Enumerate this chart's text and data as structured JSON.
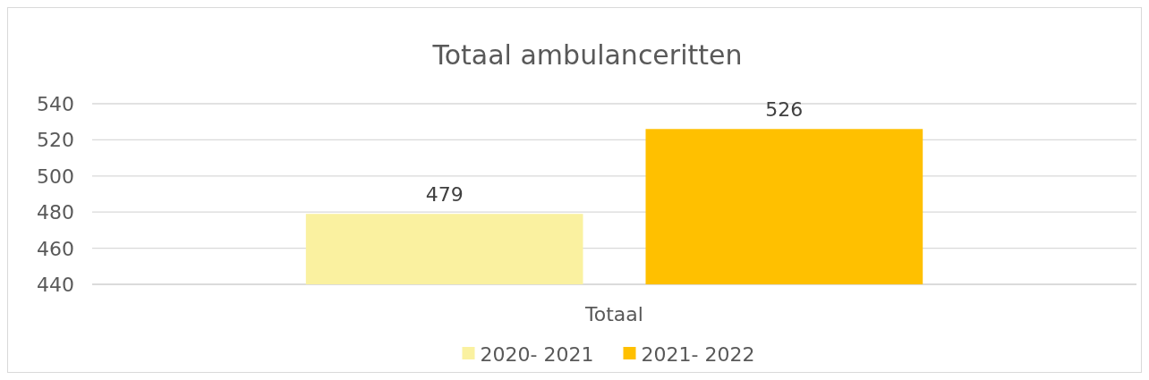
{
  "chart_data": {
    "type": "bar",
    "title": "Totaal ambulanceritten",
    "categories": [
      "Totaal"
    ],
    "series": [
      {
        "name": "2020- 2021",
        "color": "#faf1a0",
        "values": [
          479
        ]
      },
      {
        "name": "2021- 2022",
        "color": "#ffc000",
        "values": [
          526
        ]
      }
    ],
    "ylim": [
      440,
      540
    ],
    "yticks": [
      440,
      460,
      480,
      500,
      520,
      540
    ],
    "grid": "y",
    "legend": "bottom",
    "data_labels": true
  }
}
